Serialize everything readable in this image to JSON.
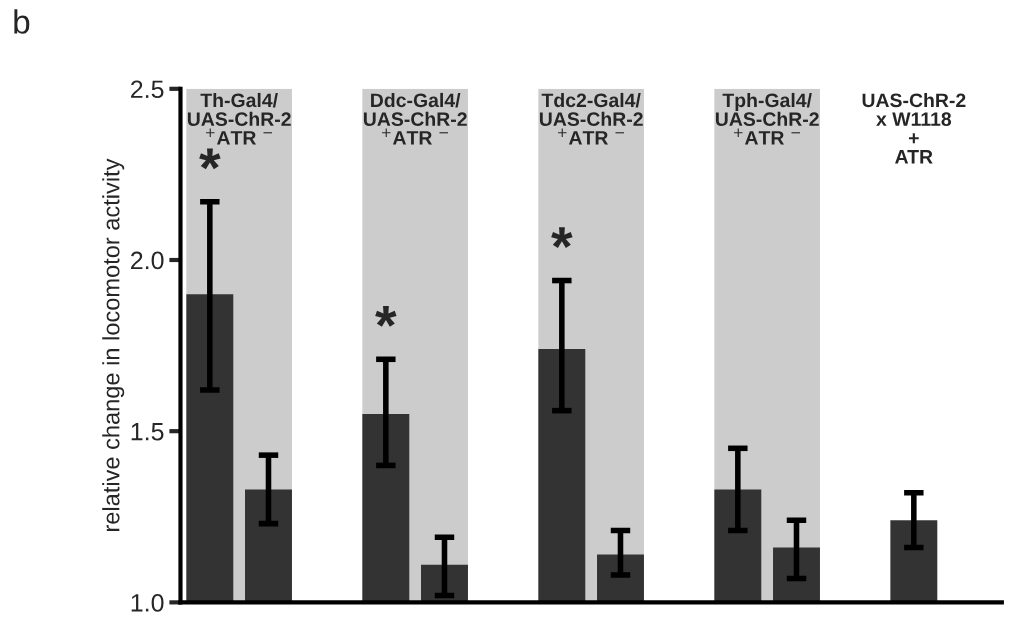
{
  "chart_data": {
    "type": "bar",
    "ylabel": "relative change in locomotor activity",
    "categories": [
      null,
      null,
      null,
      null,
      null,
      null,
      null,
      null,
      null,
      null,
      null,
      null,
      null,
      null
    ],
    "values": [
      1.9,
      1.33,
      null,
      1.55,
      1.11,
      null,
      1.74,
      1.14,
      null,
      1.33,
      1.16,
      null,
      1.24,
      null
    ],
    "errors": [
      [
        1.62,
        2.17
      ],
      [
        1.23,
        1.43
      ],
      null,
      [
        1.4,
        1.71
      ],
      [
        1.02,
        1.19
      ],
      null,
      [
        1.56,
        1.94
      ],
      [
        1.08,
        1.21
      ],
      null,
      [
        1.21,
        1.45
      ],
      [
        1.07,
        1.24
      ],
      null,
      [
        1.16,
        1.32
      ],
      null
    ],
    "value_labels": [
      "*",
      null,
      null,
      "*",
      null,
      null,
      "*",
      null,
      null,
      null,
      null,
      null,
      null,
      null
    ],
    "color": "#333333",
    "annotations": [
      "b",
      "Th-Gal4/\nUAS-ChR-2\n$^{+}$ATR $^{−}$",
      "Ddc-Gal4/\nUAS-ChR-2\n$^{+}$ATR $^{−}$",
      "Tdc2-Gal4/\nUAS-ChR-2\n$^{+}$ATR $^{−}$",
      "Tph-Gal4/\nUAS-ChR-2\n$^{+}$ATR $^{−}$",
      "UAS-ChR-2\nx W1118\n+\nATR"
    ],
    "ylim": [
      1.0,
      2.5
    ],
    "yticks": [
      {
        "value": 1.0,
        "label": "1.0"
      },
      1.5,
      {
        "value": 2.0,
        "label": "2.0"
      },
      2.5
    ],
    "grid": false,
    "legend": false
  }
}
